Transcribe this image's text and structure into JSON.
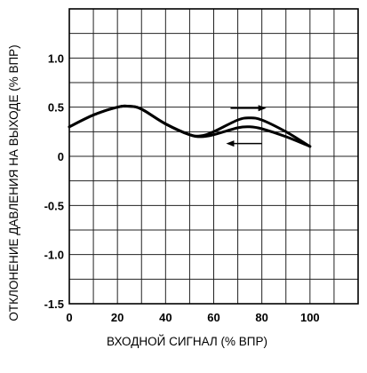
{
  "chart_data": {
    "type": "line",
    "title": "",
    "xlabel": "ВХОДНОЙ СИГНАЛ (% ВПР)",
    "ylabel": "ОТКЛОНЕНИЕ ДАВЛЕНИЯ НА ВЫХОДЕ (% ВПР)",
    "xlim": [
      0,
      120
    ],
    "ylim": [
      -1.5,
      1.5
    ],
    "x_ticks": [
      0,
      20,
      40,
      60,
      80,
      100
    ],
    "x_tick_labels": [
      "0",
      "20",
      "40",
      "60",
      "80",
      "100"
    ],
    "y_ticks": [
      1.0,
      0.5,
      0,
      -0.5,
      -1.0,
      -1.5
    ],
    "y_tick_labels": [
      "1.0",
      "0.5",
      "0",
      "-0.5",
      "-1.0",
      "-1.5"
    ],
    "grid": true,
    "series": [
      {
        "direction": "increasing",
        "arrow": "right",
        "x": [
          0,
          10,
          20,
          25,
          30,
          40,
          50,
          55,
          60,
          70,
          75,
          80,
          90,
          100
        ],
        "y": [
          0.3,
          0.42,
          0.5,
          0.51,
          0.48,
          0.33,
          0.22,
          0.21,
          0.25,
          0.37,
          0.39,
          0.37,
          0.25,
          0.1
        ]
      },
      {
        "direction": "decreasing",
        "arrow": "left",
        "x": [
          0,
          10,
          20,
          25,
          30,
          40,
          50,
          55,
          60,
          70,
          75,
          80,
          90,
          100
        ],
        "y": [
          0.3,
          0.42,
          0.5,
          0.51,
          0.48,
          0.33,
          0.22,
          0.2,
          0.22,
          0.29,
          0.3,
          0.28,
          0.2,
          0.1
        ]
      }
    ]
  }
}
